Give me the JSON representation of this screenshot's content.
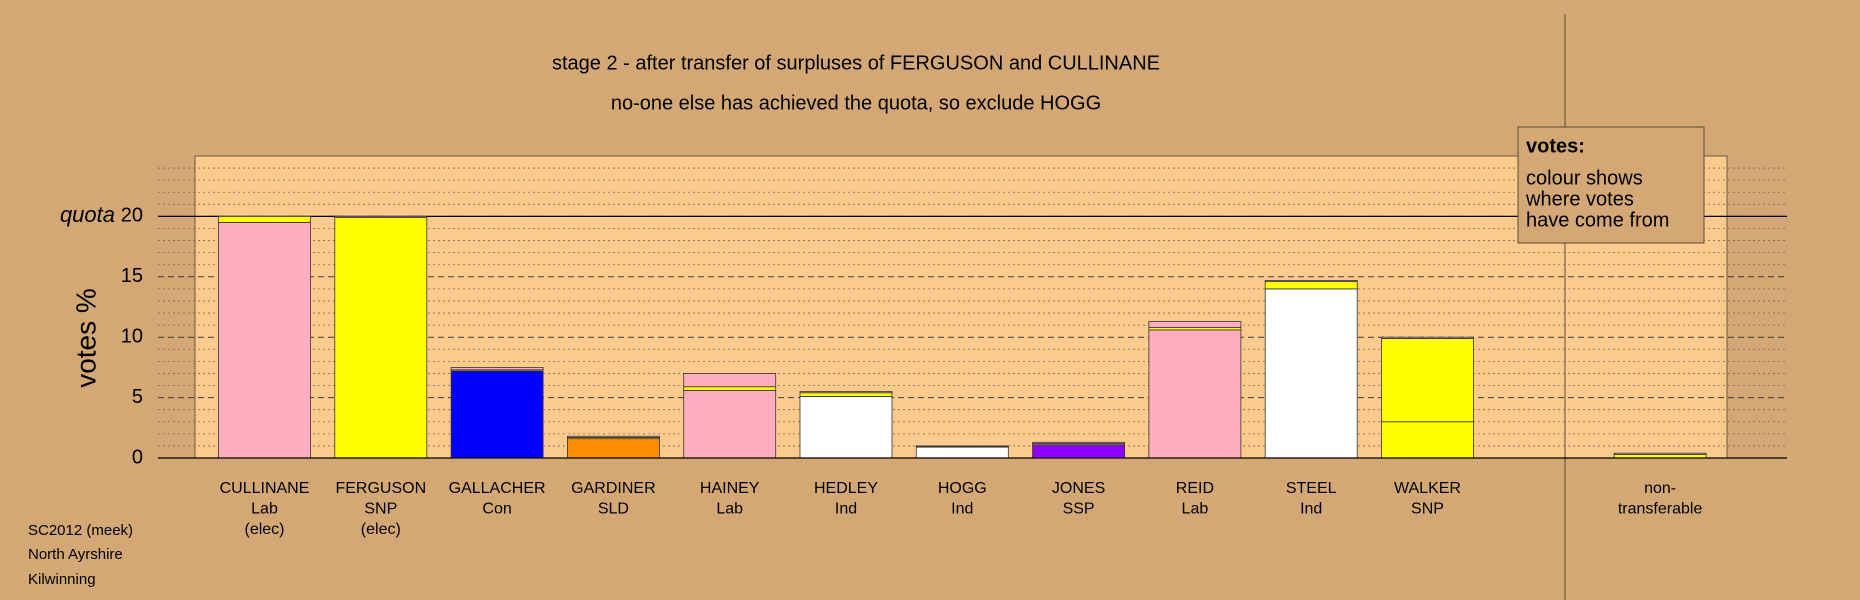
{
  "chart_data": {
    "type": "stacked_bar",
    "title": "stage 2 - after transfer of surpluses of FERGUSON and CULLINANE",
    "subtitle": "no-one else has achieved the quota, so exclude HOGG",
    "ylabel": "votes %",
    "categories": [
      [
        "CULLINANE",
        "Lab",
        "(elec)"
      ],
      [
        "FERGUSON",
        "SNP",
        "(elec)"
      ],
      [
        "GALLACHER",
        "Con"
      ],
      [
        "GARDINER",
        "SLD"
      ],
      [
        "HAINEY",
        "Lab"
      ],
      [
        "HEDLEY",
        "Ind"
      ],
      [
        "HOGG",
        "Ind"
      ],
      [
        "JONES",
        "SSP"
      ],
      [
        "REID",
        "Lab"
      ],
      [
        "STEEL",
        "Ind"
      ],
      [
        "WALKER",
        "SNP"
      ],
      null,
      [
        "non-",
        "transferable"
      ]
    ],
    "series": [
      {
        "colors": [
          "#ffaec0",
          "#ffff00",
          "#0000ff",
          "#ff8c00",
          "#ffaec0",
          "#ffffff",
          "#ffffff",
          "#8b00ff",
          "#ffaec0",
          "#ffffff",
          "#ffff00",
          null,
          null
        ],
        "values": [
          19.5,
          19.9,
          7.2,
          1.6,
          5.6,
          5.1,
          0.9,
          1.1,
          10.6,
          14.0,
          3.0,
          null,
          null
        ]
      },
      {
        "color": "#ffff00",
        "values": [
          0.5,
          null,
          0.1,
          0.1,
          0.3,
          0.3,
          0.05,
          0.1,
          0.2,
          0.6,
          6.9,
          null,
          0.3
        ]
      },
      {
        "color": "#ffaec0",
        "values": [
          null,
          0.1,
          0.2,
          0.1,
          1.1,
          0.1,
          0.05,
          0.1,
          0.5,
          0.1,
          0.1,
          null,
          0.1
        ]
      }
    ],
    "ylim": [
      0,
      25
    ],
    "yticks": [
      0,
      5,
      10,
      15,
      20
    ],
    "minor_yticks": [
      1,
      2,
      3,
      4,
      6,
      7,
      8,
      9,
      11,
      12,
      13,
      14,
      16,
      17,
      18,
      19,
      21,
      22,
      23,
      24
    ],
    "quota": 20,
    "quota_label": "quota",
    "legend_title": "votes:",
    "legend_text": [
      "colour shows",
      "where votes",
      "have come from"
    ],
    "footer": [
      "SC2012 (meek)",
      "North Ayrshire",
      "Kilwinning"
    ]
  }
}
